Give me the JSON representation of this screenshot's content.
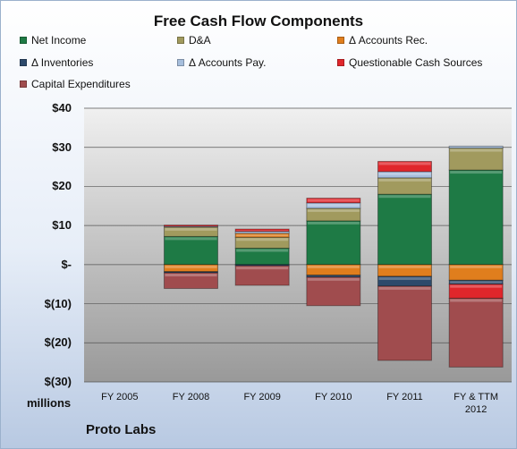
{
  "chart_data": {
    "type": "bar",
    "stacked": true,
    "title": "Free Cash Flow Components",
    "categories": [
      "FY 2005",
      "FY 2008",
      "FY 2009",
      "FY 2010",
      "FY 2011",
      "FY & TTM 2012"
    ],
    "ylim": [
      -30,
      40
    ],
    "yticks": [
      "$40",
      "$30",
      "$20",
      "$10",
      "$-",
      "$(10)",
      "$(20)",
      "$(30)"
    ],
    "ytick_values": [
      40,
      30,
      20,
      10,
      0,
      -10,
      -20,
      -30
    ],
    "ylabel": "millions",
    "grid": true,
    "legend_position": "top",
    "series": [
      {
        "name": "Net Income",
        "color": "#1e7a45",
        "values": [
          0,
          7.2,
          4.2,
          11.2,
          18.0,
          24.2
        ]
      },
      {
        "name": "D&A",
        "color": "#a19a5e",
        "values": [
          0,
          2.4,
          2.8,
          3.2,
          4.2,
          5.6
        ]
      },
      {
        "name": "Δ Accounts Rec.",
        "color": "#e07e1d",
        "values": [
          0,
          -1.8,
          1.0,
          -2.7,
          -3.0,
          -4.0
        ]
      },
      {
        "name": "Δ Inventories",
        "color": "#2d4a6b",
        "values": [
          0,
          -0.3,
          -0.3,
          -0.5,
          -2.5,
          -1.0
        ]
      },
      {
        "name": "Δ Accounts Pay.",
        "color": "#a6bedc",
        "values": [
          0,
          0.2,
          0.5,
          1.4,
          1.6,
          0.5
        ]
      },
      {
        "name": "Questionable Cash Sources",
        "color": "#e0262b",
        "values": [
          0,
          0.3,
          0.6,
          1.2,
          2.6,
          -3.6
        ]
      },
      {
        "name": "Capital Expenditures",
        "color": "#a04c4e",
        "values": [
          0,
          -4.0,
          -5.0,
          -7.3,
          -19.0,
          -17.6
        ]
      }
    ]
  },
  "footer": {
    "units_label": "millions",
    "company": "Proto Labs"
  }
}
